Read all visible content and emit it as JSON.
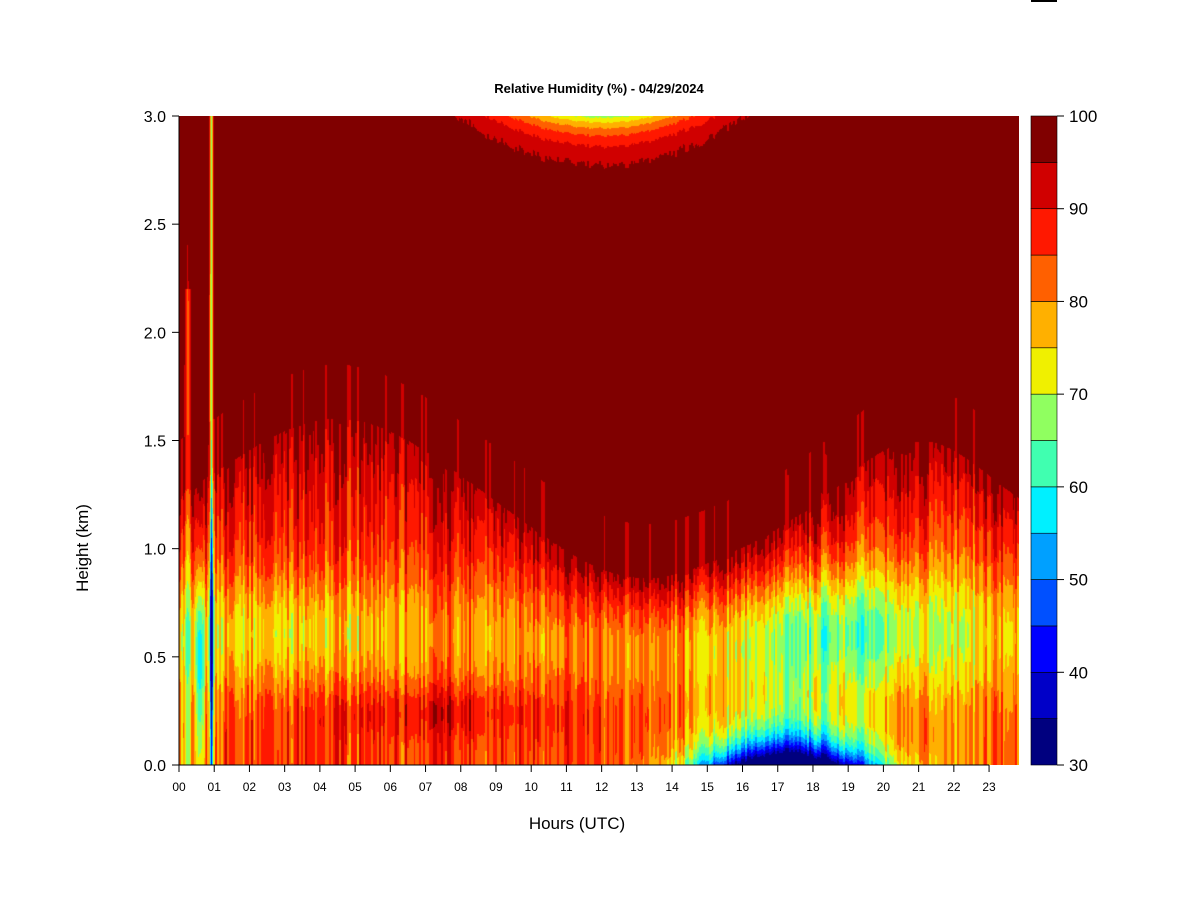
{
  "chart_data": {
    "type": "heatmap",
    "title": "Relative Humidity (%) - 04/29/2024",
    "xlabel": "Hours (UTC)",
    "ylabel": "Height (km)",
    "x_ticks": [
      "00",
      "01",
      "02",
      "03",
      "04",
      "05",
      "06",
      "07",
      "08",
      "09",
      "10",
      "11",
      "12",
      "13",
      "14",
      "15",
      "16",
      "17",
      "18",
      "19",
      "20",
      "21",
      "22",
      "23"
    ],
    "y_ticks": [
      "0.0",
      "0.5",
      "1.0",
      "1.5",
      "2.0",
      "2.5",
      "3.0"
    ],
    "xlim": [
      0,
      23.85
    ],
    "ylim": [
      0,
      3.0
    ],
    "colorbar": {
      "ticks": [
        "30",
        "40",
        "50",
        "60",
        "70",
        "80",
        "90",
        "100"
      ],
      "levels": [
        30,
        35,
        40,
        45,
        50,
        55,
        60,
        65,
        70,
        75,
        80,
        85,
        90,
        95,
        100
      ],
      "colors": [
        "#00007F",
        "#0000C8",
        "#0000FF",
        "#0050FF",
        "#00A0FF",
        "#00F0FF",
        "#40FFB0",
        "#90FF60",
        "#F0F000",
        "#FFB000",
        "#FF6000",
        "#FF1800",
        "#D00000",
        "#800000"
      ]
    },
    "description_points": [
      {
        "hour": 0.0,
        "height_km": 0.5,
        "rh": 62
      },
      {
        "hour": 0.9,
        "height_km": 0.6,
        "rh": 45
      },
      {
        "hour": 2.5,
        "height_km": 0.6,
        "rh": 75
      },
      {
        "hour": 6.0,
        "height_km": 0.2,
        "rh": 93
      },
      {
        "hour": 8.0,
        "height_km": 0.8,
        "rh": 80
      },
      {
        "hour": 12.0,
        "height_km": 2.9,
        "rh": 70
      },
      {
        "hour": 12.0,
        "height_km": 2.0,
        "rh": 100
      },
      {
        "hour": 15.0,
        "height_km": 0.05,
        "rh": 48
      },
      {
        "hour": 17.5,
        "height_km": 0.02,
        "rh": 38
      },
      {
        "hour": 19.0,
        "height_km": 0.5,
        "rh": 68
      },
      {
        "hour": 22.0,
        "height_km": 0.6,
        "rh": 78
      }
    ]
  }
}
